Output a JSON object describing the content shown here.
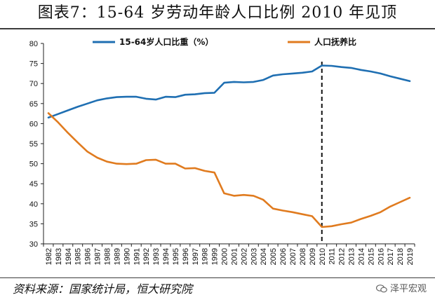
{
  "title": "图表7：15-64 岁劳动年龄人口比例 2010 年见顶",
  "source": "资料来源：国家统计局，恒大研究院",
  "watermark": "泽平宏观",
  "chart_data": {
    "type": "line",
    "x": [
      "1982",
      "1983",
      "1984",
      "1985",
      "1986",
      "1987",
      "1988",
      "1989",
      "1990",
      "1991",
      "1992",
      "1993",
      "1994",
      "1995",
      "1996",
      "1997",
      "1998",
      "1999",
      "2000",
      "2001",
      "2002",
      "2003",
      "2004",
      "2005",
      "2006",
      "2007",
      "2008",
      "2009",
      "2010",
      "2011",
      "2012",
      "2013",
      "2014",
      "2015",
      "2016",
      "2017",
      "2018",
      "2019"
    ],
    "ylim": [
      30,
      80
    ],
    "yticks": [
      30,
      35,
      40,
      45,
      50,
      55,
      60,
      65,
      70,
      75,
      80
    ],
    "grid": false,
    "legend_position": "top",
    "series": [
      {
        "name": "15-64岁人口比重（%）",
        "color": "#1f6fb2",
        "values": [
          61.5,
          62.4,
          63.3,
          64.2,
          65.0,
          65.8,
          66.3,
          66.6,
          66.7,
          66.7,
          66.2,
          66.0,
          66.7,
          66.6,
          67.2,
          67.3,
          67.6,
          67.7,
          70.2,
          70.4,
          70.3,
          70.4,
          70.9,
          72.0,
          72.3,
          72.5,
          72.7,
          73.0,
          74.5,
          74.4,
          74.1,
          73.9,
          73.4,
          73.0,
          72.5,
          71.8,
          71.2,
          70.6
        ]
      },
      {
        "name": "人口抚养比",
        "color": "#e07b1f",
        "values": [
          62.6,
          60.3,
          57.7,
          55.3,
          53.0,
          51.5,
          50.5,
          50.0,
          49.9,
          50.0,
          50.9,
          51.0,
          50.0,
          50.0,
          48.8,
          48.9,
          48.2,
          47.8,
          42.6,
          42.0,
          42.2,
          42.0,
          41.0,
          38.8,
          38.3,
          37.9,
          37.4,
          36.9,
          34.2,
          34.4,
          34.9,
          35.3,
          36.2,
          37.0,
          37.9,
          39.3,
          40.4,
          41.5
        ]
      }
    ],
    "annotations": [
      {
        "type": "vline",
        "x": "2010",
        "style": "dashed"
      }
    ]
  }
}
